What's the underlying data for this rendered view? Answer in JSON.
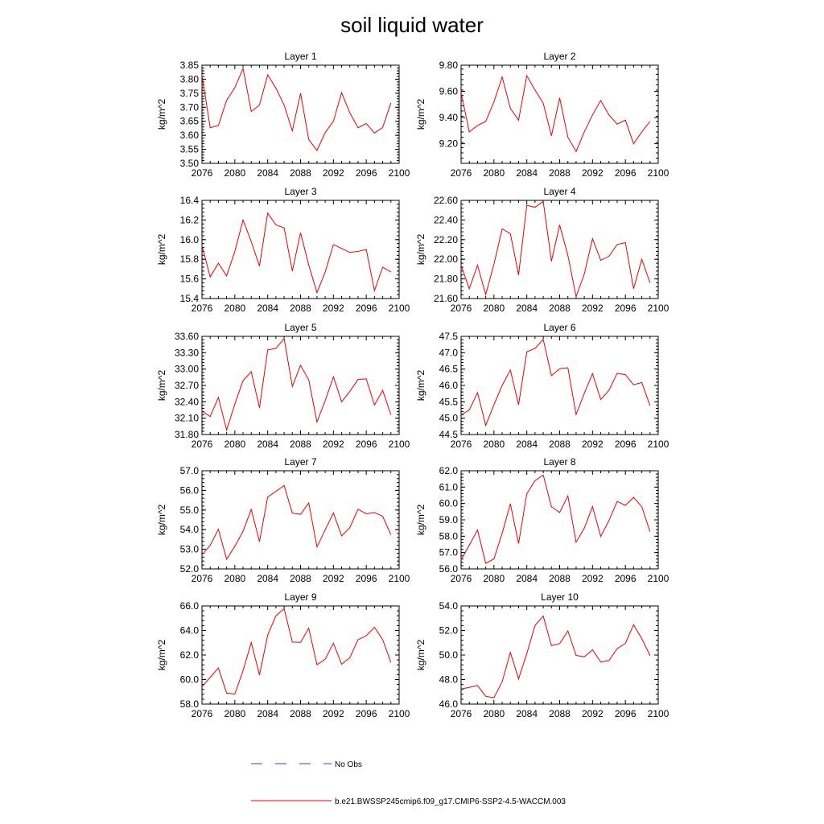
{
  "figure": {
    "title": "soil liquid water",
    "legend": [
      {
        "label": "No Obs",
        "color": "#3344cc",
        "style": "dashed"
      },
      {
        "label": "b.e21.BWSSP245cmip6.f09_g17.CMIP6-SSP2-4.5-WACCM.003",
        "color": "#ee0000",
        "style": "solid"
      }
    ]
  },
  "chart_data": [
    {
      "type": "line",
      "title": "Layer 1",
      "ylabel": "kg/m^2",
      "xlim": [
        2076,
        2100
      ],
      "xticks": [
        2076,
        2080,
        2084,
        2088,
        2092,
        2096,
        2100
      ],
      "ylim": [
        3.5,
        3.85
      ],
      "yticks": [
        "3.50",
        "3.55",
        "3.60",
        "3.65",
        "3.70",
        "3.75",
        "3.80",
        "3.85"
      ],
      "x": [
        2076,
        2077,
        2078,
        2079,
        2080,
        2081,
        2082,
        2083,
        2084,
        2085,
        2086,
        2087,
        2088,
        2089,
        2090,
        2091,
        2092,
        2093,
        2094,
        2095,
        2096,
        2097,
        2098,
        2099
      ],
      "series": [
        {
          "color": "#ee0000",
          "values": [
            3.815,
            3.627,
            3.635,
            3.725,
            3.77,
            3.838,
            3.685,
            3.708,
            3.816,
            3.768,
            3.708,
            3.616,
            3.75,
            3.585,
            3.546,
            3.61,
            3.65,
            3.752,
            3.68,
            3.627,
            3.642,
            3.608,
            3.628,
            3.716
          ]
        }
      ]
    },
    {
      "type": "line",
      "title": "Layer 2",
      "ylabel": "kg/m^2",
      "xlim": [
        2076,
        2100
      ],
      "xticks": [
        2076,
        2080,
        2084,
        2088,
        2092,
        2096,
        2100
      ],
      "ylim": [
        9.05,
        9.8
      ],
      "yticks": [
        "9.20",
        "9.40",
        "9.60",
        "9.80"
      ],
      "x": [
        2076,
        2077,
        2078,
        2079,
        2080,
        2081,
        2082,
        2083,
        2084,
        2085,
        2086,
        2087,
        2088,
        2089,
        2090,
        2091,
        2092,
        2093,
        2094,
        2095,
        2096,
        2097,
        2098,
        2099
      ],
      "series": [
        {
          "color": "#ee0000",
          "values": [
            9.59,
            9.29,
            9.34,
            9.37,
            9.52,
            9.71,
            9.47,
            9.38,
            9.72,
            9.61,
            9.51,
            9.26,
            9.55,
            9.25,
            9.14,
            9.29,
            9.42,
            9.53,
            9.42,
            9.35,
            9.38,
            9.2,
            9.29,
            9.37
          ]
        }
      ]
    },
    {
      "type": "line",
      "title": "Layer 3",
      "ylabel": "kg/m^2",
      "xlim": [
        2076,
        2100
      ],
      "xticks": [
        2076,
        2080,
        2084,
        2088,
        2092,
        2096,
        2100
      ],
      "ylim": [
        15.4,
        16.4
      ],
      "yticks": [
        "15.4",
        "15.6",
        "15.8",
        "16.0",
        "16.2",
        "16.4"
      ],
      "x": [
        2076,
        2077,
        2078,
        2079,
        2080,
        2081,
        2082,
        2083,
        2084,
        2085,
        2086,
        2087,
        2088,
        2089,
        2090,
        2091,
        2092,
        2093,
        2094,
        2095,
        2096,
        2097,
        2098,
        2099
      ],
      "series": [
        {
          "color": "#ee0000",
          "values": [
            15.94,
            15.62,
            15.76,
            15.63,
            15.88,
            16.2,
            15.98,
            15.73,
            16.27,
            16.15,
            16.12,
            15.68,
            16.07,
            15.74,
            15.46,
            15.67,
            15.95,
            15.91,
            15.87,
            15.88,
            15.9,
            15.48,
            15.72,
            15.67
          ]
        }
      ]
    },
    {
      "type": "line",
      "title": "Layer 4",
      "ylabel": "kg/m^2",
      "xlim": [
        2076,
        2100
      ],
      "xticks": [
        2076,
        2080,
        2084,
        2088,
        2092,
        2096,
        2100
      ],
      "ylim": [
        21.6,
        22.6
      ],
      "yticks": [
        "21.60",
        "21.80",
        "22.00",
        "22.20",
        "22.40",
        "22.60"
      ],
      "x": [
        2076,
        2077,
        2078,
        2079,
        2080,
        2081,
        2082,
        2083,
        2084,
        2085,
        2086,
        2087,
        2088,
        2089,
        2090,
        2091,
        2092,
        2093,
        2094,
        2095,
        2096,
        2097,
        2098,
        2099
      ],
      "series": [
        {
          "color": "#ee0000",
          "values": [
            21.94,
            21.7,
            21.94,
            21.64,
            21.95,
            22.31,
            22.26,
            21.84,
            22.55,
            22.53,
            22.59,
            21.98,
            22.35,
            22.04,
            21.62,
            21.85,
            22.21,
            21.99,
            22.03,
            22.15,
            22.17,
            21.7,
            22.0,
            21.76
          ]
        }
      ]
    },
    {
      "type": "line",
      "title": "Layer 5",
      "ylabel": "kg/m^2",
      "xlim": [
        2076,
        2100
      ],
      "xticks": [
        2076,
        2080,
        2084,
        2088,
        2092,
        2096,
        2100
      ],
      "ylim": [
        31.8,
        33.6
      ],
      "yticks": [
        "31.80",
        "32.10",
        "32.40",
        "32.70",
        "33.00",
        "33.30",
        "33.60"
      ],
      "x": [
        2076,
        2077,
        2078,
        2079,
        2080,
        2081,
        2082,
        2083,
        2084,
        2085,
        2086,
        2087,
        2088,
        2089,
        2090,
        2091,
        2092,
        2093,
        2094,
        2095,
        2096,
        2097,
        2098,
        2099
      ],
      "series": [
        {
          "color": "#ee0000",
          "values": [
            32.23,
            32.13,
            32.48,
            31.88,
            32.36,
            32.79,
            32.95,
            32.29,
            33.35,
            33.38,
            33.56,
            32.68,
            33.07,
            32.8,
            32.03,
            32.42,
            32.86,
            32.4,
            32.59,
            32.81,
            32.82,
            32.34,
            32.61,
            32.16
          ]
        }
      ]
    },
    {
      "type": "line",
      "title": "Layer 6",
      "ylabel": "kg/m^2",
      "xlim": [
        2076,
        2100
      ],
      "xticks": [
        2076,
        2080,
        2084,
        2088,
        2092,
        2096,
        2100
      ],
      "ylim": [
        44.5,
        47.5
      ],
      "yticks": [
        "44.5",
        "45.0",
        "45.5",
        "46.0",
        "46.5",
        "47.0",
        "47.5"
      ],
      "x": [
        2076,
        2077,
        2078,
        2079,
        2080,
        2081,
        2082,
        2083,
        2084,
        2085,
        2086,
        2087,
        2088,
        2089,
        2090,
        2091,
        2092,
        2093,
        2094,
        2095,
        2096,
        2097,
        2098,
        2099
      ],
      "series": [
        {
          "color": "#ee0000",
          "values": [
            45.1,
            45.25,
            45.78,
            44.78,
            45.41,
            46.0,
            46.47,
            45.41,
            47.03,
            47.13,
            47.41,
            46.3,
            46.51,
            46.54,
            45.11,
            45.76,
            46.36,
            45.57,
            45.85,
            46.37,
            46.33,
            46.02,
            46.09,
            45.38
          ]
        }
      ]
    },
    {
      "type": "line",
      "title": "Layer 7",
      "ylabel": "kg/m^2",
      "xlim": [
        2076,
        2100
      ],
      "xticks": [
        2076,
        2080,
        2084,
        2088,
        2092,
        2096,
        2100
      ],
      "ylim": [
        52.0,
        57.0
      ],
      "yticks": [
        "52.0",
        "53.0",
        "54.0",
        "55.0",
        "56.0",
        "57.0"
      ],
      "x": [
        2076,
        2077,
        2078,
        2079,
        2080,
        2081,
        2082,
        2083,
        2084,
        2085,
        2086,
        2087,
        2088,
        2089,
        2090,
        2091,
        2092,
        2093,
        2094,
        2095,
        2096,
        2097,
        2098,
        2099
      ],
      "series": [
        {
          "color": "#ee0000",
          "values": [
            52.72,
            53.2,
            54.02,
            52.49,
            53.15,
            53.92,
            55.03,
            53.39,
            55.66,
            55.95,
            56.25,
            54.84,
            54.78,
            55.36,
            53.12,
            53.99,
            54.85,
            53.68,
            54.1,
            55.04,
            54.81,
            54.87,
            54.68,
            53.74
          ]
        }
      ]
    },
    {
      "type": "line",
      "title": "Layer 8",
      "ylabel": "kg/m^2",
      "xlim": [
        2076,
        2100
      ],
      "xticks": [
        2076,
        2080,
        2084,
        2088,
        2092,
        2096,
        2100
      ],
      "ylim": [
        56.0,
        62.0
      ],
      "yticks": [
        "56.0",
        "57.0",
        "58.0",
        "59.0",
        "60.0",
        "61.0",
        "62.0"
      ],
      "x": [
        2076,
        2077,
        2078,
        2079,
        2080,
        2081,
        2082,
        2083,
        2084,
        2085,
        2086,
        2087,
        2088,
        2089,
        2090,
        2091,
        2092,
        2093,
        2094,
        2095,
        2096,
        2097,
        2098,
        2099
      ],
      "series": [
        {
          "color": "#ee0000",
          "values": [
            56.55,
            57.45,
            58.38,
            56.34,
            56.61,
            58.18,
            59.98,
            57.55,
            60.59,
            61.39,
            61.74,
            59.8,
            59.45,
            60.46,
            57.63,
            58.49,
            59.81,
            57.99,
            58.95,
            60.13,
            59.88,
            60.37,
            59.8,
            58.28
          ]
        }
      ]
    },
    {
      "type": "line",
      "title": "Layer 9",
      "ylabel": "kg/m^2",
      "xlim": [
        2076,
        2100
      ],
      "xticks": [
        2076,
        2080,
        2084,
        2088,
        2092,
        2096,
        2100
      ],
      "ylim": [
        58.0,
        66.0
      ],
      "yticks": [
        "58.0",
        "60.0",
        "62.0",
        "64.0",
        "66.0"
      ],
      "x": [
        2076,
        2077,
        2078,
        2079,
        2080,
        2081,
        2082,
        2083,
        2084,
        2085,
        2086,
        2087,
        2088,
        2089,
        2090,
        2091,
        2092,
        2093,
        2094,
        2095,
        2096,
        2097,
        2098,
        2099
      ],
      "series": [
        {
          "color": "#ee0000",
          "values": [
            59.4,
            60.18,
            60.94,
            58.9,
            58.82,
            60.73,
            63.02,
            60.37,
            63.62,
            65.19,
            65.78,
            63.06,
            63.03,
            64.18,
            61.21,
            61.66,
            62.97,
            61.25,
            61.78,
            63.25,
            63.57,
            64.26,
            63.26,
            61.39
          ]
        }
      ]
    },
    {
      "type": "line",
      "title": "Layer 10",
      "ylabel": "kg/m^2",
      "xlim": [
        2076,
        2100
      ],
      "xticks": [
        2076,
        2080,
        2084,
        2088,
        2092,
        2096,
        2100
      ],
      "ylim": [
        46.0,
        54.0
      ],
      "yticks": [
        "46.0",
        "48.0",
        "50.0",
        "52.0",
        "54.0"
      ],
      "x": [
        2076,
        2077,
        2078,
        2079,
        2080,
        2081,
        2082,
        2083,
        2084,
        2085,
        2086,
        2087,
        2088,
        2089,
        2090,
        2091,
        2092,
        2093,
        2094,
        2095,
        2096,
        2097,
        2098,
        2099
      ],
      "series": [
        {
          "color": "#ee0000",
          "values": [
            47.23,
            47.36,
            47.52,
            46.64,
            46.52,
            47.82,
            50.21,
            48.06,
            50.11,
            52.41,
            53.17,
            50.76,
            50.93,
            51.97,
            49.97,
            49.85,
            50.43,
            49.43,
            49.55,
            50.52,
            50.95,
            52.47,
            51.33,
            49.96
          ]
        }
      ]
    }
  ]
}
